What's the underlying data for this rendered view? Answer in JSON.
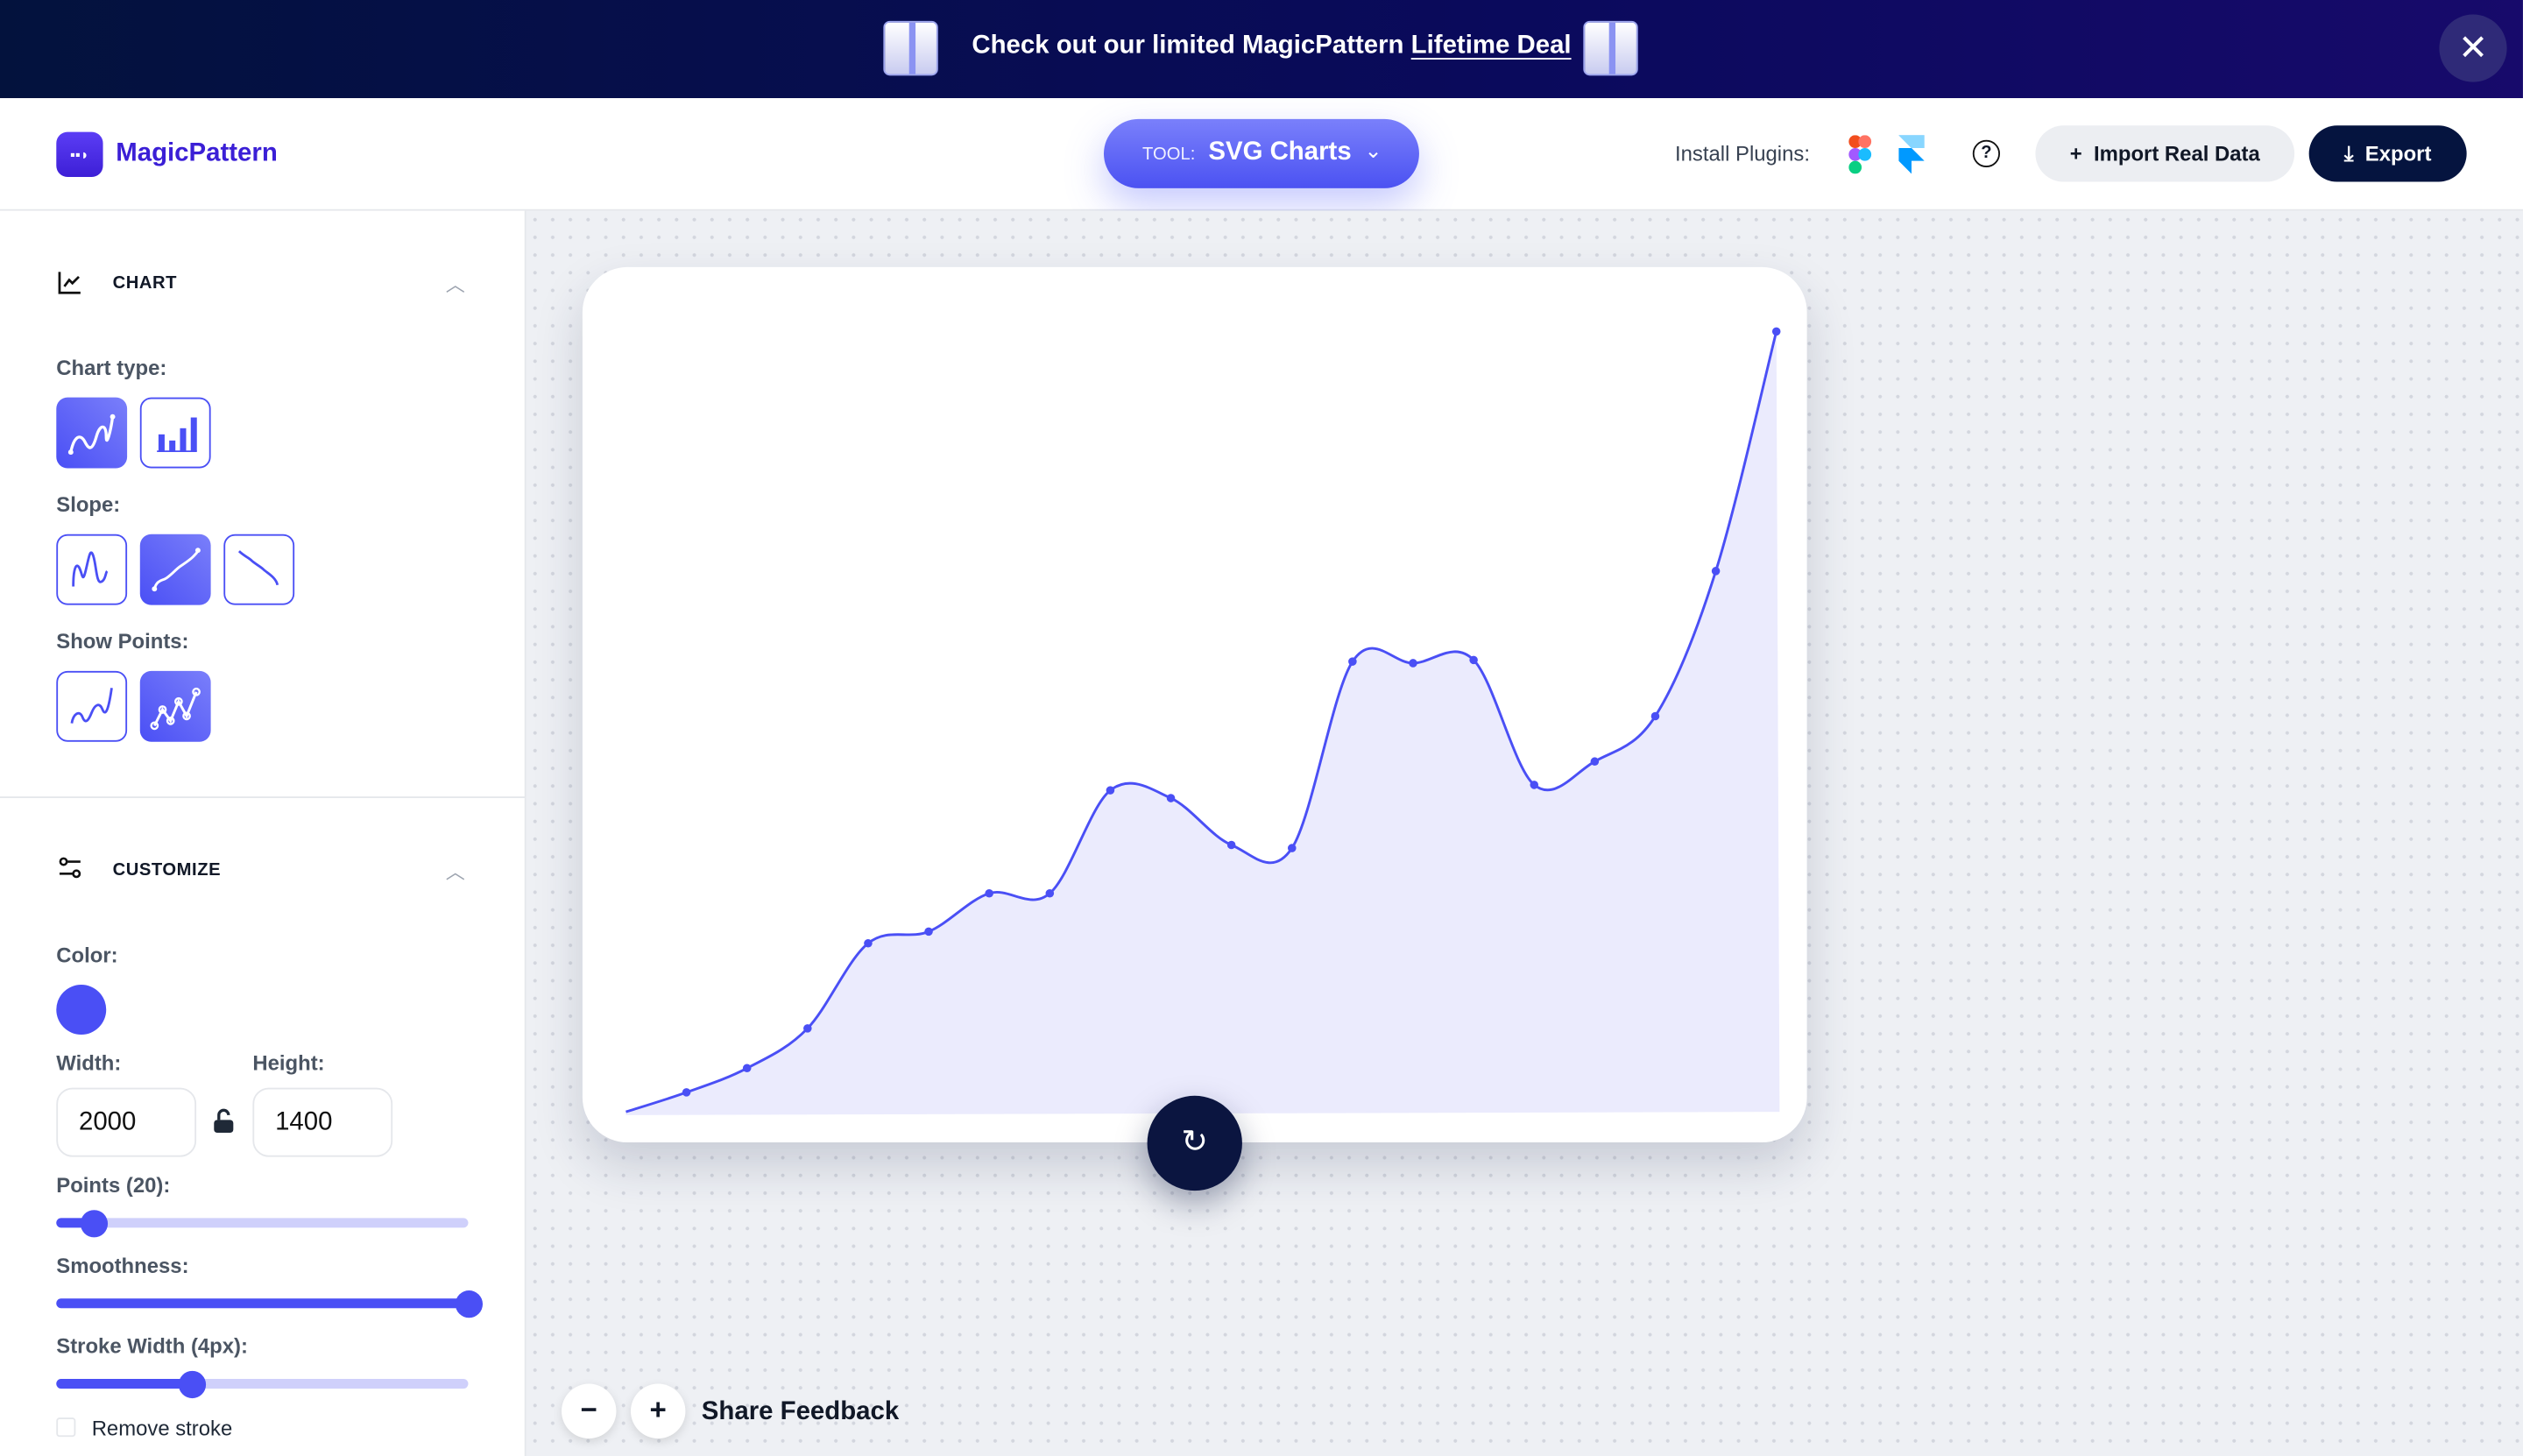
{
  "banner": {
    "text": "Check out our limited MagicPattern ",
    "link": "Lifetime Deal",
    "close_icon": "x-icon"
  },
  "header": {
    "brand": "MagicPattern",
    "logo_text": "▪▪◗",
    "tool_prefix": "TOOL:",
    "tool_value": "SVG Charts",
    "install_label": "Install Plugins:",
    "help": "?",
    "import_label": "Import Real Data",
    "export_label": "Export",
    "import_icon": "+",
    "export_icon": "⤓"
  },
  "sidebar": {
    "chart": {
      "title": "CHART",
      "chart_type_label": "Chart type:",
      "chart_types": [
        "line",
        "bar"
      ],
      "chart_type_selected": "line",
      "slope_label": "Slope:",
      "slopes": [
        "random",
        "up",
        "down"
      ],
      "slope_selected": "up",
      "points_label": "Show Points:",
      "points_options": [
        "hide",
        "show"
      ],
      "points_selected": "show"
    },
    "customize": {
      "title": "CUSTOMIZE",
      "color_label": "Color:",
      "color": "#4a4ff5",
      "width_label": "Width:",
      "width": "2000",
      "height_label": "Height:",
      "height": "1400",
      "points_slider_label": "Points (20):",
      "points_fraction": 0.08,
      "smoothness_label": "Smoothness:",
      "smoothness_fraction": 1.0,
      "stroke_label": "Stroke Width (4px):",
      "stroke_fraction": 0.33,
      "remove_stroke_label": "Remove stroke",
      "remove_stroke_checked": false
    }
  },
  "canvas": {
    "feedback": "Share Feedback",
    "zoom_out": "−",
    "zoom_in": "+",
    "refresh_icon": "↻"
  },
  "chart_data": {
    "type": "area",
    "points_shown": true,
    "smooth": true,
    "color": "#4a4ff5",
    "fill": "#ebebfd",
    "x": [
      1,
      2,
      3,
      4,
      5,
      6,
      7,
      8,
      9,
      10,
      11,
      12,
      13,
      14,
      15,
      16,
      17,
      18,
      19,
      20
    ],
    "values": [
      0,
      2.5,
      5.6,
      10.7,
      21.6,
      23.1,
      28,
      28,
      41.2,
      40.2,
      34.2,
      33.8,
      57.7,
      57.5,
      57.9,
      41.9,
      44.9,
      50.7,
      69.3,
      100
    ],
    "ylim": [
      0,
      100
    ],
    "grid": false
  }
}
